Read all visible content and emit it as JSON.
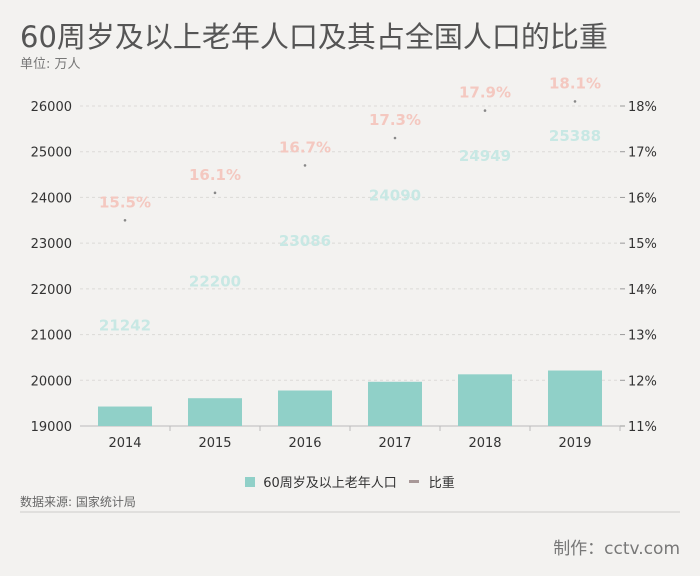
{
  "header": {
    "title": "60周岁及以上老年人口及其占全国人口的比重",
    "unit": "单位: 万人"
  },
  "chart_data": {
    "type": "bar+line",
    "categories": [
      "2014",
      "2015",
      "2016",
      "2017",
      "2018",
      "2019"
    ],
    "series": [
      {
        "name": "60周岁及以上老年人口",
        "type": "bar",
        "axis": "left",
        "color": "#90d0c8",
        "values": [
          21242,
          22200,
          23086,
          24090,
          24949,
          25388
        ]
      },
      {
        "name": "比重",
        "type": "line",
        "axis": "right",
        "color": "#a89898",
        "values": [
          15.5,
          16.1,
          16.7,
          17.3,
          17.9,
          18.1
        ],
        "labels": [
          "15.5%",
          "16.1%",
          "16.7%",
          "17.3%",
          "17.9%",
          "18.1%"
        ]
      }
    ],
    "left_axis": {
      "range": [
        19000,
        26000
      ],
      "ticks": [
        "19000",
        "20000",
        "21000",
        "22000",
        "23000",
        "24000",
        "25000",
        "26000"
      ]
    },
    "right_axis": {
      "range": [
        11,
        18
      ],
      "ticks": [
        "11%",
        "12%",
        "13%",
        "14%",
        "15%",
        "16%",
        "17%",
        "18%"
      ]
    },
    "grid": true,
    "legend_placement": "bottom",
    "bar_label_color": "#c8e8e4",
    "line_label_color": "#f4c8c0"
  },
  "footer": {
    "source": "数据来源: 国家统计局",
    "credit": "制作：cctv.com"
  }
}
